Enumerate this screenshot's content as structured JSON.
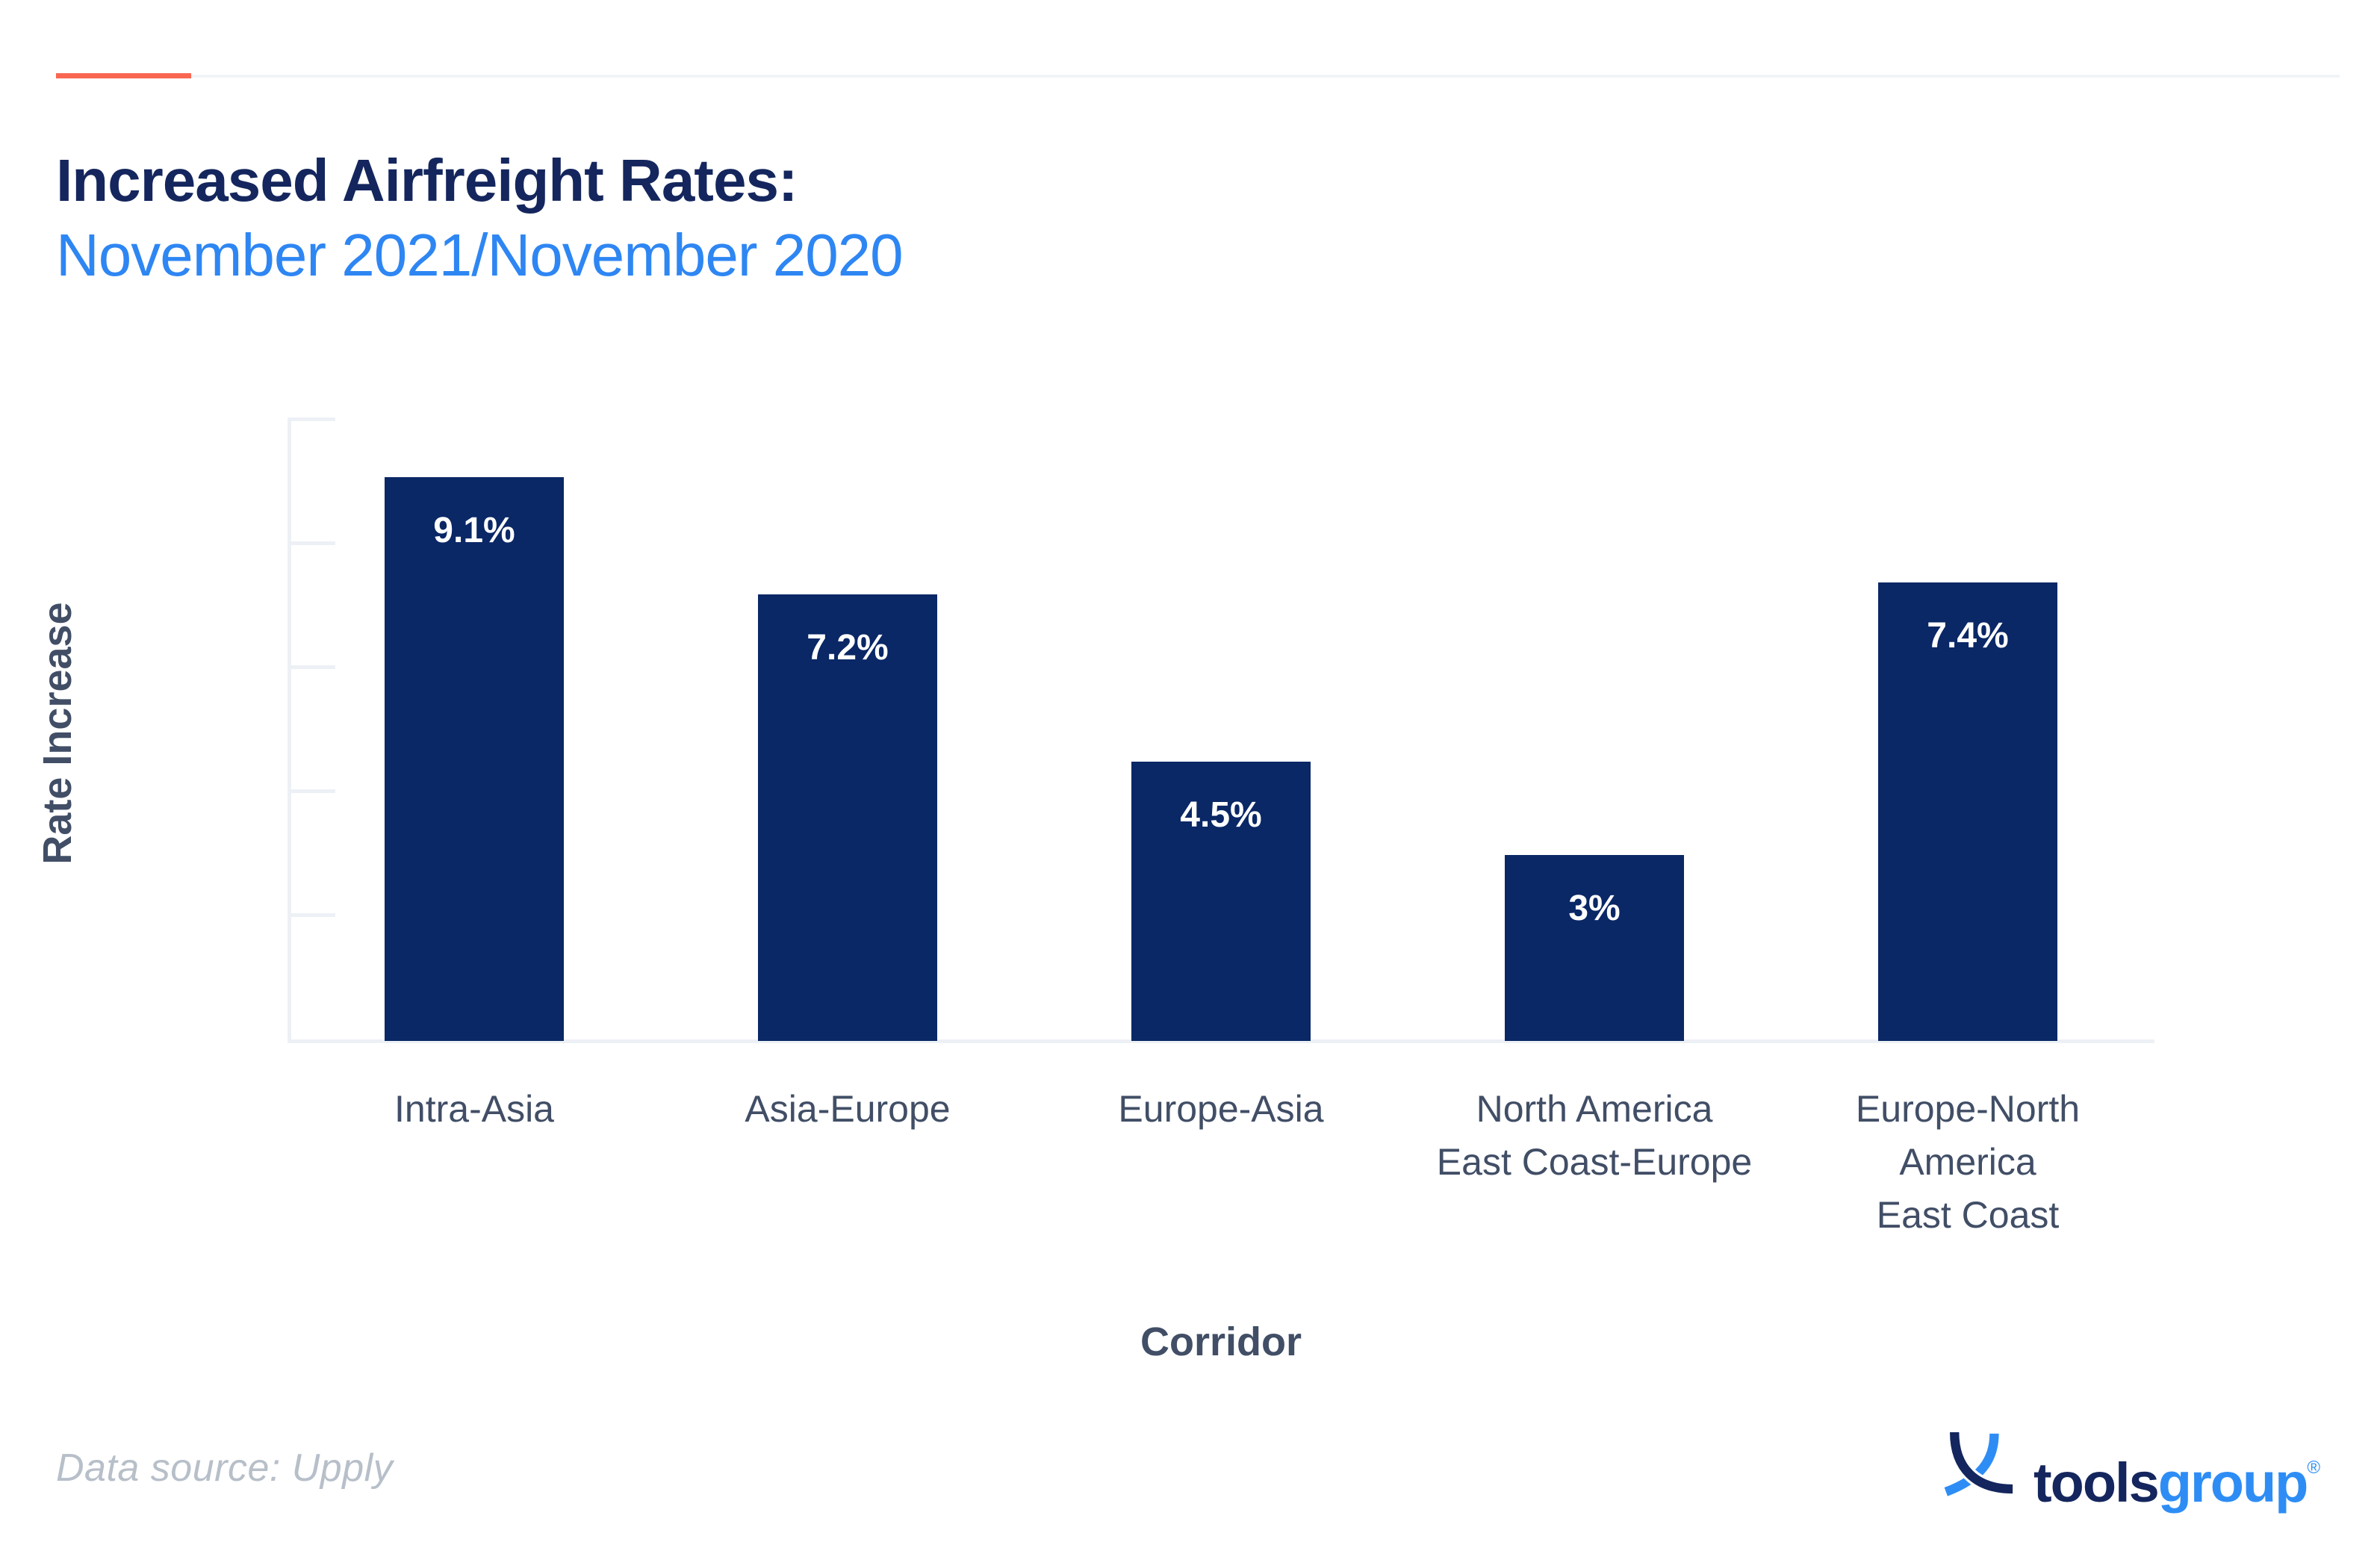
{
  "header": {
    "title": "Increased Airfreight Rates:",
    "subtitle": "November 2021/November 2020"
  },
  "chart_data": {
    "type": "bar",
    "title": "Increased Airfreight Rates: November 2021/November 2020",
    "categories": [
      "Intra-Asia",
      "Asia-Europe",
      "Europe-Asia",
      "North America East Coast-Europe",
      "Europe-North America East Coast"
    ],
    "category_lines": [
      [
        "Intra-Asia"
      ],
      [
        "Asia-Europe"
      ],
      [
        "Europe-Asia"
      ],
      [
        "North America",
        "East Coast-Europe"
      ],
      [
        "Europe-North",
        "America",
        "East Coast"
      ]
    ],
    "values": [
      9.1,
      7.2,
      4.5,
      3,
      7.4
    ],
    "value_labels": [
      "9.1%",
      "7.2%",
      "4.5%",
      "3%",
      "7.4%"
    ],
    "xlabel": "Corridor",
    "ylabel": "Rate Increase",
    "ylim": [
      0,
      10
    ],
    "ytick_interval": 2,
    "ytick_labels_visible": false,
    "grid": false,
    "legend": "none"
  },
  "footer": {
    "source": "Data source: Upply",
    "logo_tools": "tools",
    "logo_group": "group",
    "logo_reg": "®"
  },
  "colors": {
    "accent_orange": "#f96651",
    "divider_gray": "#f1f4f7",
    "title_navy": "#14265d",
    "subtitle_blue": "#2e86f3",
    "bar_navy": "#0a2766",
    "value_label_white": "#ffffff",
    "label_slate": "#414e66",
    "axis_gray": "#edf1f6",
    "source_gray": "#b7bfc9",
    "logo_navy": "#14265d",
    "logo_blue": "#2e8df5"
  }
}
